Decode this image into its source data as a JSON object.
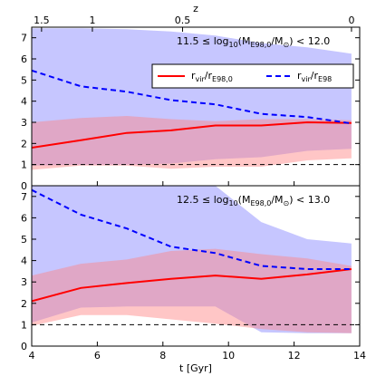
{
  "chart_data": {
    "type": "line",
    "xlabel": "t [Gyr]",
    "top_axis_label": "z",
    "xlim": [
      4,
      14
    ],
    "x_ticks": [
      4,
      6,
      8,
      10,
      12,
      14
    ],
    "top_axis_ticks": [
      {
        "label": "1.5",
        "t": 4.3
      },
      {
        "label": "1",
        "t": 5.85
      },
      {
        "label": "0.5",
        "t": 8.6
      },
      {
        "label": "0",
        "t": 13.75
      }
    ],
    "colors": {
      "series_1": "#ff0000",
      "series_2": "#0000ff",
      "band_1": "#ff8080",
      "band_2": "#8080ff",
      "reference": "#000000"
    },
    "legend": {
      "placement": "top-right (upper panel)",
      "entries": [
        {
          "main": "r",
          "sub_main": "vir",
          "sep": "/r",
          "sub_sep": "E98,0",
          "line": "solid",
          "color": "#ff0000"
        },
        {
          "main": "r",
          "sub_main": "vir",
          "sep": "/r",
          "sub_sep": "E98",
          "line": "dashed",
          "color": "#0000ff"
        }
      ]
    },
    "panels": [
      {
        "label": {
          "lo": "11.5",
          "le": "≤",
          "log": "log",
          "log_sub": "10",
          "open": "(M",
          "m_sub": "E98,0",
          "slash": "/M",
          "sun": "⊙",
          "close": ")",
          "lt": "<",
          "hi": "12.0"
        },
        "ylim": [
          0,
          7.5
        ],
        "y_ticks": [
          0,
          1,
          2,
          3,
          4,
          5,
          6,
          7
        ],
        "reference_y": 1,
        "x": [
          4.0,
          5.5,
          6.9,
          8.25,
          9.6,
          11.0,
          12.4,
          13.75
        ],
        "series": [
          {
            "key": "rvir_over_rE98_0",
            "style": "solid",
            "values": [
              1.8,
              2.15,
              2.5,
              2.62,
              2.85,
              2.85,
              3.0,
              2.97
            ],
            "band_low": [
              0.75,
              0.95,
              0.95,
              0.8,
              0.9,
              0.9,
              1.2,
              1.3
            ],
            "band_high": [
              3.0,
              3.2,
              3.3,
              3.15,
              3.05,
              3.15,
              3.15,
              3.1
            ]
          },
          {
            "key": "rvir_over_rE98",
            "style": "dashed",
            "values": [
              5.45,
              4.7,
              4.45,
              4.05,
              3.85,
              3.4,
              3.25,
              2.95
            ],
            "band_low": [
              0.95,
              1.0,
              1.0,
              1.05,
              1.25,
              1.35,
              1.65,
              1.75
            ],
            "band_high": [
              7.45,
              7.45,
              7.4,
              7.3,
              7.1,
              6.75,
              6.55,
              6.25
            ]
          }
        ]
      },
      {
        "label": {
          "lo": "12.5",
          "le": "≤",
          "log": "log",
          "log_sub": "10",
          "open": "(M",
          "m_sub": "E98,0",
          "slash": "/M",
          "sun": "⊙",
          "close": ")",
          "lt": "<",
          "hi": "13.0"
        },
        "ylim": [
          0,
          7.5
        ],
        "y_ticks": [
          0,
          1,
          2,
          3,
          4,
          5,
          6,
          7
        ],
        "reference_y": 1,
        "x": [
          4.0,
          5.5,
          6.9,
          8.25,
          9.6,
          11.0,
          12.4,
          13.75
        ],
        "series": [
          {
            "key": "rvir_over_rE98_0",
            "style": "solid",
            "values": [
              2.1,
              2.72,
              2.95,
              3.15,
              3.3,
              3.15,
              3.35,
              3.6
            ],
            "band_low": [
              0.95,
              1.45,
              1.45,
              1.25,
              1.05,
              0.8,
              0.65,
              0.6
            ],
            "band_high": [
              3.3,
              3.85,
              4.05,
              4.45,
              4.55,
              4.3,
              4.1,
              3.75
            ]
          },
          {
            "key": "rvir_over_rE98",
            "style": "dashed",
            "values": [
              7.3,
              6.15,
              5.5,
              4.65,
              4.35,
              3.75,
              3.6,
              3.6
            ],
            "band_low": [
              1.1,
              1.8,
              1.85,
              1.85,
              1.85,
              0.65,
              0.6,
              0.6
            ],
            "band_high": [
              7.5,
              7.5,
              7.5,
              7.5,
              7.5,
              5.8,
              5.0,
              4.8
            ]
          }
        ]
      }
    ]
  }
}
